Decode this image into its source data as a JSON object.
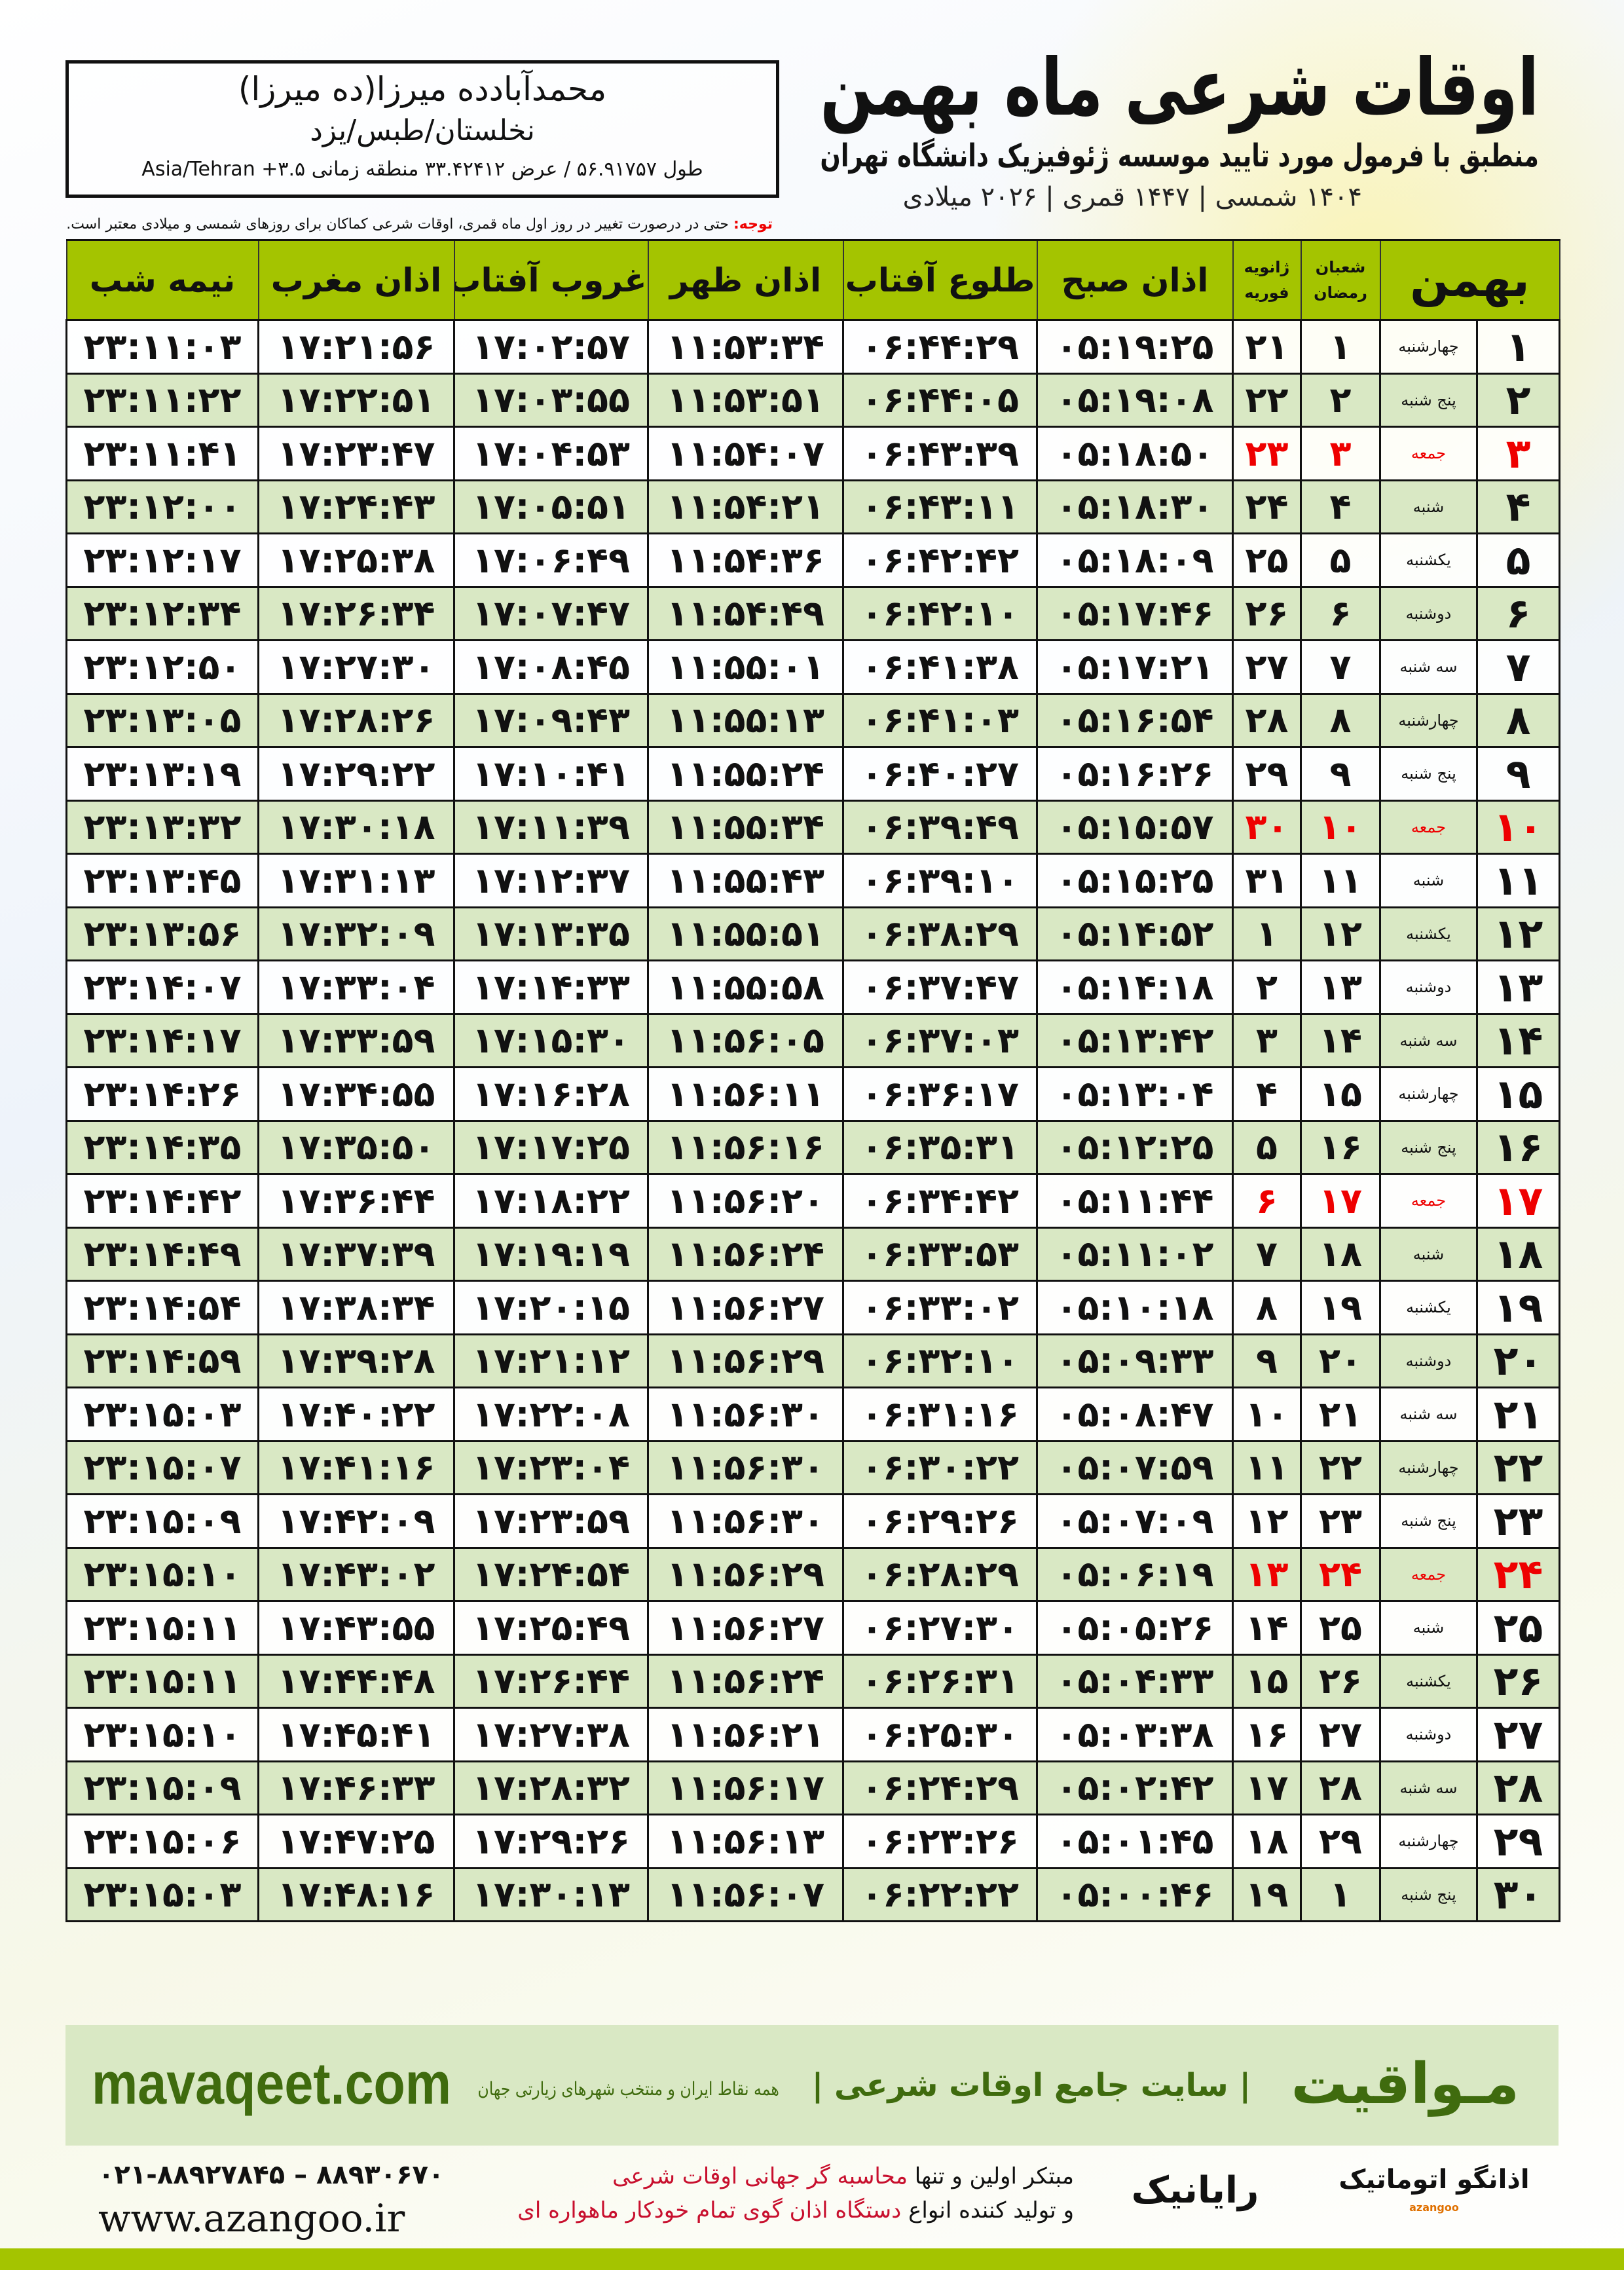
{
  "header": {
    "title": "اوقات شرعی ماه بهمن",
    "subtitle": "منطبق با فرمول مورد تایید موسسه ژئوفیزیک دانشگاه تهران",
    "years": "۱۴۰۴ شمسی | ۱۴۴۷ قمری | ۲۰۲۶ میلادی"
  },
  "location": {
    "name": "محمدآبادده میرزا(ده میرزا)",
    "region": "نخلستان/طبس/یزد",
    "coords": "طول ۵۶.۹۱۷۵۷ / عرض ۳۳.۴۲۴۱۲ منطقه زمانی ۳.۵+ Asia/Tehran"
  },
  "note": {
    "label": "توجه:",
    "text": " حتی در درصورت تغییر در روز اول ماه قمری، اوقات شرعی کماکان برای روزهای شمسی و میلادی معتبر است."
  },
  "table": {
    "headers": {
      "month": "بهمن",
      "hijri": [
        "شعبان",
        "رمضان"
      ],
      "greg": [
        "ژانویه",
        "فوریه"
      ],
      "sobh": "اذان صبح",
      "tolu": "طلوع آفتاب",
      "zohr": "اذان ظهر",
      "ghorub": "غروب آفتاب",
      "maghrib": "اذان مغرب",
      "nimeh": "نیمه شب"
    },
    "friday_color": "#e00000",
    "header_color": "#a4c400",
    "rows": [
      [
        "۱",
        "چهارشنبه",
        "۱",
        "۲۱",
        "۰۵:۱۹:۲۵",
        "۰۶:۴۴:۲۹",
        "۱۱:۵۳:۳۴",
        "۱۷:۰۲:۵۷",
        "۱۷:۲۱:۵۶",
        "۲۳:۱۱:۰۳"
      ],
      [
        "۲",
        "پنج شنبه",
        "۲",
        "۲۲",
        "۰۵:۱۹:۰۸",
        "۰۶:۴۴:۰۵",
        "۱۱:۵۳:۵۱",
        "۱۷:۰۳:۵۵",
        "۱۷:۲۲:۵۱",
        "۲۳:۱۱:۲۲"
      ],
      [
        "۳",
        "جمعه",
        "۳",
        "۲۳",
        "۰۵:۱۸:۵۰",
        "۰۶:۴۳:۳۹",
        "۱۱:۵۴:۰۷",
        "۱۷:۰۴:۵۳",
        "۱۷:۲۳:۴۷",
        "۲۳:۱۱:۴۱"
      ],
      [
        "۴",
        "شنبه",
        "۴",
        "۲۴",
        "۰۵:۱۸:۳۰",
        "۰۶:۴۳:۱۱",
        "۱۱:۵۴:۲۱",
        "۱۷:۰۵:۵۱",
        "۱۷:۲۴:۴۳",
        "۲۳:۱۲:۰۰"
      ],
      [
        "۵",
        "یکشنبه",
        "۵",
        "۲۵",
        "۰۵:۱۸:۰۹",
        "۰۶:۴۲:۴۲",
        "۱۱:۵۴:۳۶",
        "۱۷:۰۶:۴۹",
        "۱۷:۲۵:۳۸",
        "۲۳:۱۲:۱۷"
      ],
      [
        "۶",
        "دوشنبه",
        "۶",
        "۲۶",
        "۰۵:۱۷:۴۶",
        "۰۶:۴۲:۱۰",
        "۱۱:۵۴:۴۹",
        "۱۷:۰۷:۴۷",
        "۱۷:۲۶:۳۴",
        "۲۳:۱۲:۳۴"
      ],
      [
        "۷",
        "سه شنبه",
        "۷",
        "۲۷",
        "۰۵:۱۷:۲۱",
        "۰۶:۴۱:۳۸",
        "۱۱:۵۵:۰۱",
        "۱۷:۰۸:۴۵",
        "۱۷:۲۷:۳۰",
        "۲۳:۱۲:۵۰"
      ],
      [
        "۸",
        "چهارشنبه",
        "۸",
        "۲۸",
        "۰۵:۱۶:۵۴",
        "۰۶:۴۱:۰۳",
        "۱۱:۵۵:۱۳",
        "۱۷:۰۹:۴۳",
        "۱۷:۲۸:۲۶",
        "۲۳:۱۳:۰۵"
      ],
      [
        "۹",
        "پنج شنبه",
        "۹",
        "۲۹",
        "۰۵:۱۶:۲۶",
        "۰۶:۴۰:۲۷",
        "۱۱:۵۵:۲۴",
        "۱۷:۱۰:۴۱",
        "۱۷:۲۹:۲۲",
        "۲۳:۱۳:۱۹"
      ],
      [
        "۱۰",
        "جمعه",
        "۱۰",
        "۳۰",
        "۰۵:۱۵:۵۷",
        "۰۶:۳۹:۴۹",
        "۱۱:۵۵:۳۴",
        "۱۷:۱۱:۳۹",
        "۱۷:۳۰:۱۸",
        "۲۳:۱۳:۳۲"
      ],
      [
        "۱۱",
        "شنبه",
        "۱۱",
        "۳۱",
        "۰۵:۱۵:۲۵",
        "۰۶:۳۹:۱۰",
        "۱۱:۵۵:۴۳",
        "۱۷:۱۲:۳۷",
        "۱۷:۳۱:۱۳",
        "۲۳:۱۳:۴۵"
      ],
      [
        "۱۲",
        "یکشنبه",
        "۱۲",
        "۱",
        "۰۵:۱۴:۵۲",
        "۰۶:۳۸:۲۹",
        "۱۱:۵۵:۵۱",
        "۱۷:۱۳:۳۵",
        "۱۷:۳۲:۰۹",
        "۲۳:۱۳:۵۶"
      ],
      [
        "۱۳",
        "دوشنبه",
        "۱۳",
        "۲",
        "۰۵:۱۴:۱۸",
        "۰۶:۳۷:۴۷",
        "۱۱:۵۵:۵۸",
        "۱۷:۱۴:۳۳",
        "۱۷:۳۳:۰۴",
        "۲۳:۱۴:۰۷"
      ],
      [
        "۱۴",
        "سه شنبه",
        "۱۴",
        "۳",
        "۰۵:۱۳:۴۲",
        "۰۶:۳۷:۰۳",
        "۱۱:۵۶:۰۵",
        "۱۷:۱۵:۳۰",
        "۱۷:۳۳:۵۹",
        "۲۳:۱۴:۱۷"
      ],
      [
        "۱۵",
        "چهارشنبه",
        "۱۵",
        "۴",
        "۰۵:۱۳:۰۴",
        "۰۶:۳۶:۱۷",
        "۱۱:۵۶:۱۱",
        "۱۷:۱۶:۲۸",
        "۱۷:۳۴:۵۵",
        "۲۳:۱۴:۲۶"
      ],
      [
        "۱۶",
        "پنج شنبه",
        "۱۶",
        "۵",
        "۰۵:۱۲:۲۵",
        "۰۶:۳۵:۳۱",
        "۱۱:۵۶:۱۶",
        "۱۷:۱۷:۲۵",
        "۱۷:۳۵:۵۰",
        "۲۳:۱۴:۳۵"
      ],
      [
        "۱۷",
        "جمعه",
        "۱۷",
        "۶",
        "۰۵:۱۱:۴۴",
        "۰۶:۳۴:۴۲",
        "۱۱:۵۶:۲۰",
        "۱۷:۱۸:۲۲",
        "۱۷:۳۶:۴۴",
        "۲۳:۱۴:۴۲"
      ],
      [
        "۱۸",
        "شنبه",
        "۱۸",
        "۷",
        "۰۵:۱۱:۰۲",
        "۰۶:۳۳:۵۳",
        "۱۱:۵۶:۲۴",
        "۱۷:۱۹:۱۹",
        "۱۷:۳۷:۳۹",
        "۲۳:۱۴:۴۹"
      ],
      [
        "۱۹",
        "یکشنبه",
        "۱۹",
        "۸",
        "۰۵:۱۰:۱۸",
        "۰۶:۳۳:۰۲",
        "۱۱:۵۶:۲۷",
        "۱۷:۲۰:۱۵",
        "۱۷:۳۸:۳۴",
        "۲۳:۱۴:۵۴"
      ],
      [
        "۲۰",
        "دوشنبه",
        "۲۰",
        "۹",
        "۰۵:۰۹:۳۳",
        "۰۶:۳۲:۱۰",
        "۱۱:۵۶:۲۹",
        "۱۷:۲۱:۱۲",
        "۱۷:۳۹:۲۸",
        "۲۳:۱۴:۵۹"
      ],
      [
        "۲۱",
        "سه شنبه",
        "۲۱",
        "۱۰",
        "۰۵:۰۸:۴۷",
        "۰۶:۳۱:۱۶",
        "۱۱:۵۶:۳۰",
        "۱۷:۲۲:۰۸",
        "۱۷:۴۰:۲۲",
        "۲۳:۱۵:۰۳"
      ],
      [
        "۲۲",
        "چهارشنبه",
        "۲۲",
        "۱۱",
        "۰۵:۰۷:۵۹",
        "۰۶:۳۰:۲۲",
        "۱۱:۵۶:۳۰",
        "۱۷:۲۳:۰۴",
        "۱۷:۴۱:۱۶",
        "۲۳:۱۵:۰۷"
      ],
      [
        "۲۳",
        "پنج شنبه",
        "۲۳",
        "۱۲",
        "۰۵:۰۷:۰۹",
        "۰۶:۲۹:۲۶",
        "۱۱:۵۶:۳۰",
        "۱۷:۲۳:۵۹",
        "۱۷:۴۲:۰۹",
        "۲۳:۱۵:۰۹"
      ],
      [
        "۲۴",
        "جمعه",
        "۲۴",
        "۱۳",
        "۰۵:۰۶:۱۹",
        "۰۶:۲۸:۲۹",
        "۱۱:۵۶:۲۹",
        "۱۷:۲۴:۵۴",
        "۱۷:۴۳:۰۲",
        "۲۳:۱۵:۱۰"
      ],
      [
        "۲۵",
        "شنبه",
        "۲۵",
        "۱۴",
        "۰۵:۰۵:۲۶",
        "۰۶:۲۷:۳۰",
        "۱۱:۵۶:۲۷",
        "۱۷:۲۵:۴۹",
        "۱۷:۴۳:۵۵",
        "۲۳:۱۵:۱۱"
      ],
      [
        "۲۶",
        "یکشنبه",
        "۲۶",
        "۱۵",
        "۰۵:۰۴:۳۳",
        "۰۶:۲۶:۳۱",
        "۱۱:۵۶:۲۴",
        "۱۷:۲۶:۴۴",
        "۱۷:۴۴:۴۸",
        "۲۳:۱۵:۱۱"
      ],
      [
        "۲۷",
        "دوشنبه",
        "۲۷",
        "۱۶",
        "۰۵:۰۳:۳۸",
        "۰۶:۲۵:۳۰",
        "۱۱:۵۶:۲۱",
        "۱۷:۲۷:۳۸",
        "۱۷:۴۵:۴۱",
        "۲۳:۱۵:۱۰"
      ],
      [
        "۲۸",
        "سه شنبه",
        "۲۸",
        "۱۷",
        "۰۵:۰۲:۴۲",
        "۰۶:۲۴:۲۹",
        "۱۱:۵۶:۱۷",
        "۱۷:۲۸:۳۲",
        "۱۷:۴۶:۳۳",
        "۲۳:۱۵:۰۹"
      ],
      [
        "۲۹",
        "چهارشنبه",
        "۲۹",
        "۱۸",
        "۰۵:۰۱:۴۵",
        "۰۶:۲۳:۲۶",
        "۱۱:۵۶:۱۳",
        "۱۷:۲۹:۲۶",
        "۱۷:۴۷:۲۵",
        "۲۳:۱۵:۰۶"
      ],
      [
        "۳۰",
        "پنج شنبه",
        "۱",
        "۱۹",
        "۰۵:۰۰:۴۶",
        "۰۶:۲۲:۲۲",
        "۱۱:۵۶:۰۷",
        "۱۷:۳۰:۱۳",
        "۱۷:۴۸:۱۶",
        "۲۳:۱۵:۰۳"
      ]
    ]
  },
  "promo": {
    "logo": "مـواقیت",
    "tagline": "| سایت جامع اوقات شرعی |",
    "sub": "همه نقاط ایران و منتخب شهرهای زیارتی جهان",
    "url": "mavaqeet.com"
  },
  "footer": {
    "phone": "۰۲۱-۸۸۹۲۷۸۴۵ – ۸۸۹۳۰۶۷۰",
    "site": "www.azangoo.ir",
    "line1_a": "مبتکر اولین و تنها ",
    "line1_b": "محاسبه گر جهانی اوقات شرعی",
    "line2_a": "و تولید کننده انواع ",
    "line2_b": "دستگاه اذان گوی تمام خودکار ماهواره ای",
    "rayanik": "رایانیک",
    "azangoo": "اذانگو اتوماتیک",
    "azangoo_en": "azangoo"
  }
}
